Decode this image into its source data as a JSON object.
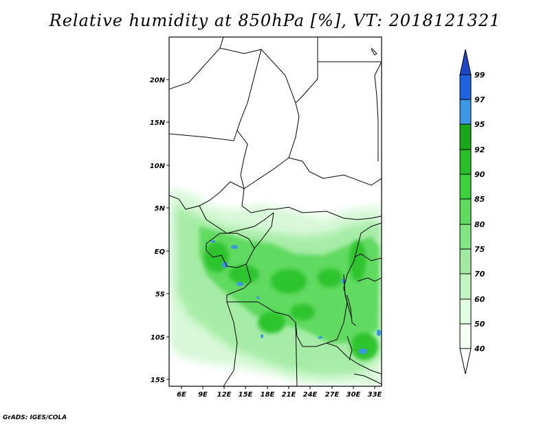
{
  "title": "Relative humidity at 850hPa [%], VT: 2018121321",
  "footer": "GrADS: IGES/COLA",
  "map": {
    "lon_labels": [
      "6E",
      "9E",
      "12E",
      "15E",
      "18E",
      "21E",
      "24E",
      "27E",
      "30E",
      "33E"
    ],
    "lat_labels": [
      "20N",
      "15N",
      "10N",
      "5N",
      "EQ",
      "5S",
      "10S",
      "15S"
    ]
  },
  "colorbar": {
    "levels": [
      "40",
      "50",
      "60",
      "70",
      "75",
      "80",
      "85",
      "90",
      "92",
      "95",
      "97",
      "99"
    ],
    "colors": [
      "#ffffff",
      "#e1ffe1",
      "#c3f5c3",
      "#a0eba0",
      "#82e682",
      "#5fdc5f",
      "#3cd23c",
      "#28be28",
      "#18a818",
      "#1496e6",
      "#1e64dc",
      "#1e46c8"
    ],
    "ocean_color": "#ffffff"
  }
}
